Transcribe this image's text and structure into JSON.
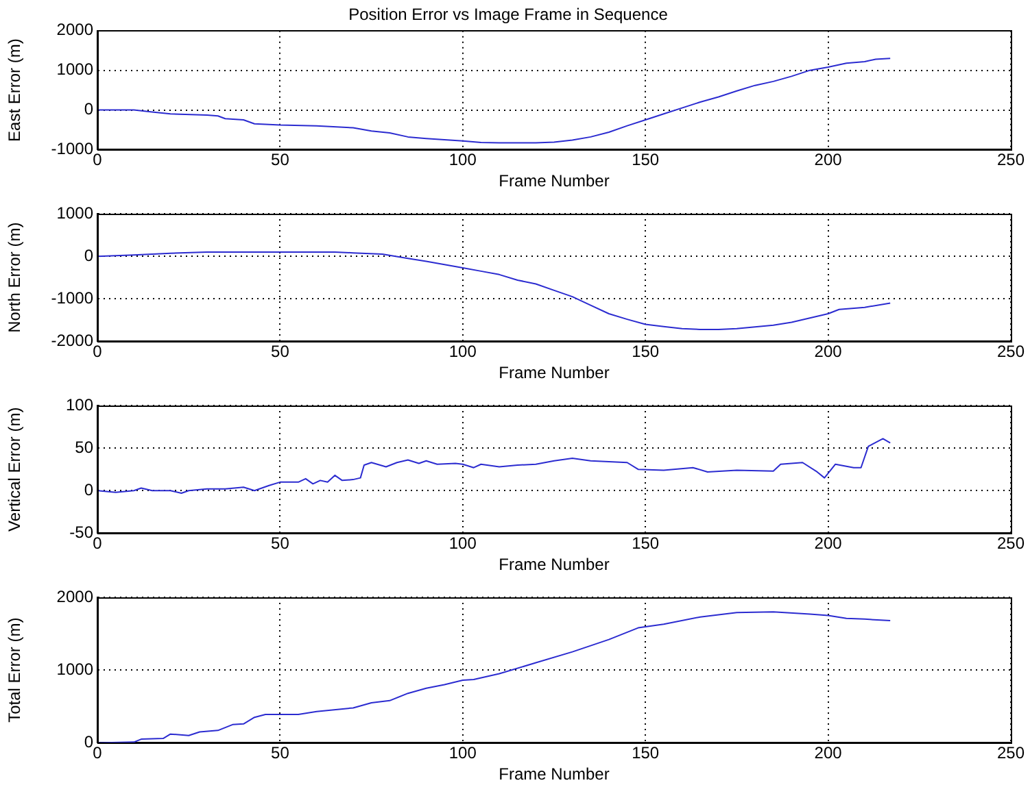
{
  "chart_data": [
    {
      "type": "line",
      "title": "Position Error vs Image Frame in Sequence",
      "xlabel": "Frame Number",
      "ylabel": "East Error (m)",
      "xlim": [
        0,
        250
      ],
      "xticks": [
        0,
        50,
        100,
        150,
        200,
        250
      ],
      "ylim": [
        -1000,
        2000
      ],
      "yticks": [
        -1000,
        0,
        1000,
        2000
      ],
      "grid": true,
      "legend": false,
      "marker": "none",
      "line_style": "solid",
      "series": [
        {
          "color": "#2b2bd0",
          "x": [
            0,
            10,
            15,
            20,
            30,
            33,
            35,
            40,
            43,
            50,
            60,
            70,
            75,
            80,
            85,
            90,
            100,
            105,
            110,
            120,
            125,
            130,
            135,
            140,
            145,
            150,
            155,
            160,
            165,
            170,
            175,
            180,
            185,
            190,
            195,
            200,
            205,
            210,
            213,
            217
          ],
          "values": [
            0,
            0,
            -50,
            -100,
            -130,
            -150,
            -220,
            -250,
            -350,
            -380,
            -400,
            -450,
            -530,
            -580,
            -680,
            -720,
            -780,
            -820,
            -830,
            -830,
            -810,
            -760,
            -680,
            -560,
            -400,
            -250,
            -100,
            50,
            200,
            330,
            480,
            620,
            720,
            850,
            1000,
            1080,
            1180,
            1220,
            1280,
            1300
          ]
        }
      ]
    },
    {
      "type": "line",
      "xlabel": "Frame Number",
      "ylabel": "North Error (m)",
      "xlim": [
        0,
        250
      ],
      "xticks": [
        0,
        50,
        100,
        150,
        200,
        250
      ],
      "ylim": [
        -2000,
        1000
      ],
      "yticks": [
        -2000,
        -1000,
        0,
        1000
      ],
      "grid": true,
      "legend": false,
      "marker": "none",
      "line_style": "solid",
      "series": [
        {
          "color": "#2b2bd0",
          "x": [
            0,
            10,
            15,
            20,
            30,
            50,
            65,
            70,
            78,
            85,
            90,
            100,
            105,
            110,
            115,
            120,
            125,
            130,
            135,
            140,
            145,
            150,
            155,
            160,
            165,
            170,
            175,
            180,
            185,
            190,
            195,
            200,
            203,
            210,
            217
          ],
          "values": [
            0,
            30,
            50,
            70,
            100,
            100,
            100,
            80,
            50,
            -50,
            -120,
            -270,
            -350,
            -430,
            -560,
            -650,
            -800,
            -950,
            -1150,
            -1350,
            -1480,
            -1600,
            -1650,
            -1700,
            -1720,
            -1720,
            -1700,
            -1660,
            -1620,
            -1550,
            -1450,
            -1350,
            -1250,
            -1200,
            -1100
          ]
        }
      ]
    },
    {
      "type": "line",
      "xlabel": "Frame Number",
      "ylabel": "Vertical Error (m)",
      "xlim": [
        0,
        250
      ],
      "xticks": [
        0,
        50,
        100,
        150,
        200,
        250
      ],
      "ylim": [
        -50,
        100
      ],
      "yticks": [
        -50,
        0,
        50,
        100
      ],
      "grid": true,
      "legend": false,
      "marker": "none",
      "line_style": "solid",
      "series": [
        {
          "color": "#2b2bd0",
          "x": [
            0,
            5,
            10,
            12,
            15,
            20,
            23,
            25,
            30,
            35,
            40,
            43,
            47,
            50,
            55,
            57,
            59,
            61,
            63,
            65,
            67,
            70,
            72,
            73,
            75,
            79,
            82,
            85,
            88,
            90,
            93,
            98,
            100,
            103,
            105,
            110,
            115,
            120,
            125,
            130,
            135,
            145,
            148,
            155,
            163,
            167,
            175,
            185,
            187,
            193,
            197,
            199,
            202,
            207,
            209,
            211,
            215,
            217
          ],
          "values": [
            0,
            -2,
            0,
            3,
            0,
            0,
            -3,
            0,
            2,
            2,
            4,
            0,
            6,
            10,
            10,
            14,
            8,
            12,
            10,
            18,
            12,
            13,
            15,
            30,
            33,
            28,
            33,
            36,
            32,
            35,
            31,
            32,
            31,
            27,
            31,
            28,
            30,
            31,
            35,
            38,
            35,
            33,
            25,
            24,
            27,
            22,
            24,
            23,
            31,
            33,
            22,
            15,
            31,
            27,
            27,
            52,
            61,
            56
          ]
        }
      ]
    },
    {
      "type": "line",
      "xlabel": "Frame Number",
      "ylabel": "Total Error (m)",
      "xlim": [
        0,
        250
      ],
      "xticks": [
        0,
        50,
        100,
        150,
        200,
        250
      ],
      "ylim": [
        0,
        2000
      ],
      "yticks": [
        0,
        1000,
        2000
      ],
      "grid": true,
      "legend": false,
      "marker": "none",
      "line_style": "solid",
      "series": [
        {
          "color": "#2b2bd0",
          "x": [
            0,
            10,
            12,
            18,
            20,
            25,
            28,
            33,
            37,
            40,
            43,
            46,
            55,
            60,
            70,
            75,
            80,
            85,
            90,
            95,
            100,
            103,
            110,
            120,
            130,
            140,
            148,
            155,
            165,
            175,
            185,
            195,
            200,
            205,
            210,
            217
          ],
          "values": [
            0,
            10,
            50,
            60,
            120,
            100,
            150,
            170,
            250,
            260,
            350,
            390,
            390,
            430,
            480,
            550,
            580,
            680,
            750,
            800,
            860,
            870,
            950,
            1100,
            1250,
            1420,
            1580,
            1630,
            1730,
            1790,
            1800,
            1770,
            1750,
            1710,
            1700,
            1680
          ]
        }
      ]
    }
  ]
}
